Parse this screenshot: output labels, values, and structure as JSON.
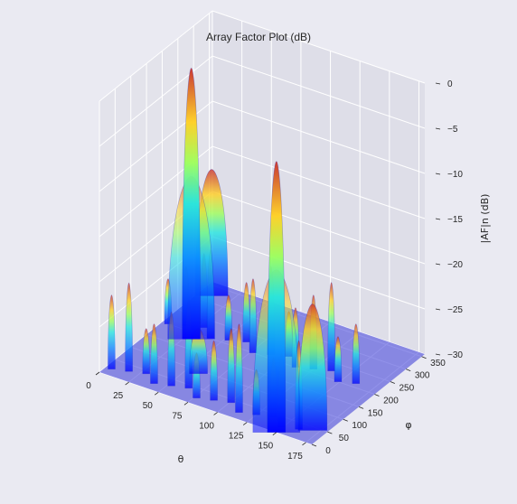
{
  "chart_data": {
    "type": "surface3d",
    "title": "Array Factor Plot (dB)",
    "xlabel": "θ",
    "ylabel": "φ",
    "zlabel": "|AF|n (dB)",
    "xlim": [
      0,
      180
    ],
    "ylim": [
      0,
      360
    ],
    "zlim": [
      -30,
      0
    ],
    "x_ticks": [
      "0",
      "25",
      "50",
      "75",
      "100",
      "125",
      "150",
      "175"
    ],
    "y_ticks": [
      "0",
      "50",
      "100",
      "150",
      "200",
      "250",
      "300",
      "350"
    ],
    "z_ticks": [
      "0",
      "−5",
      "−10",
      "−15",
      "−20",
      "−25",
      "−30"
    ],
    "x_tick_values": [
      0,
      25,
      50,
      75,
      100,
      125,
      150,
      175
    ],
    "y_tick_values": [
      0,
      50,
      100,
      150,
      200,
      250,
      300,
      350
    ],
    "z_tick_values": [
      0,
      -5,
      -10,
      -15,
      -20,
      -25,
      -30
    ],
    "colormap": "jet",
    "peaks": [
      {
        "theta": 30,
        "phi": 180,
        "value_db": 0
      },
      {
        "theta": 150,
        "phi": 0,
        "value_db": 0
      }
    ],
    "floor_db": -30,
    "grid": true
  }
}
